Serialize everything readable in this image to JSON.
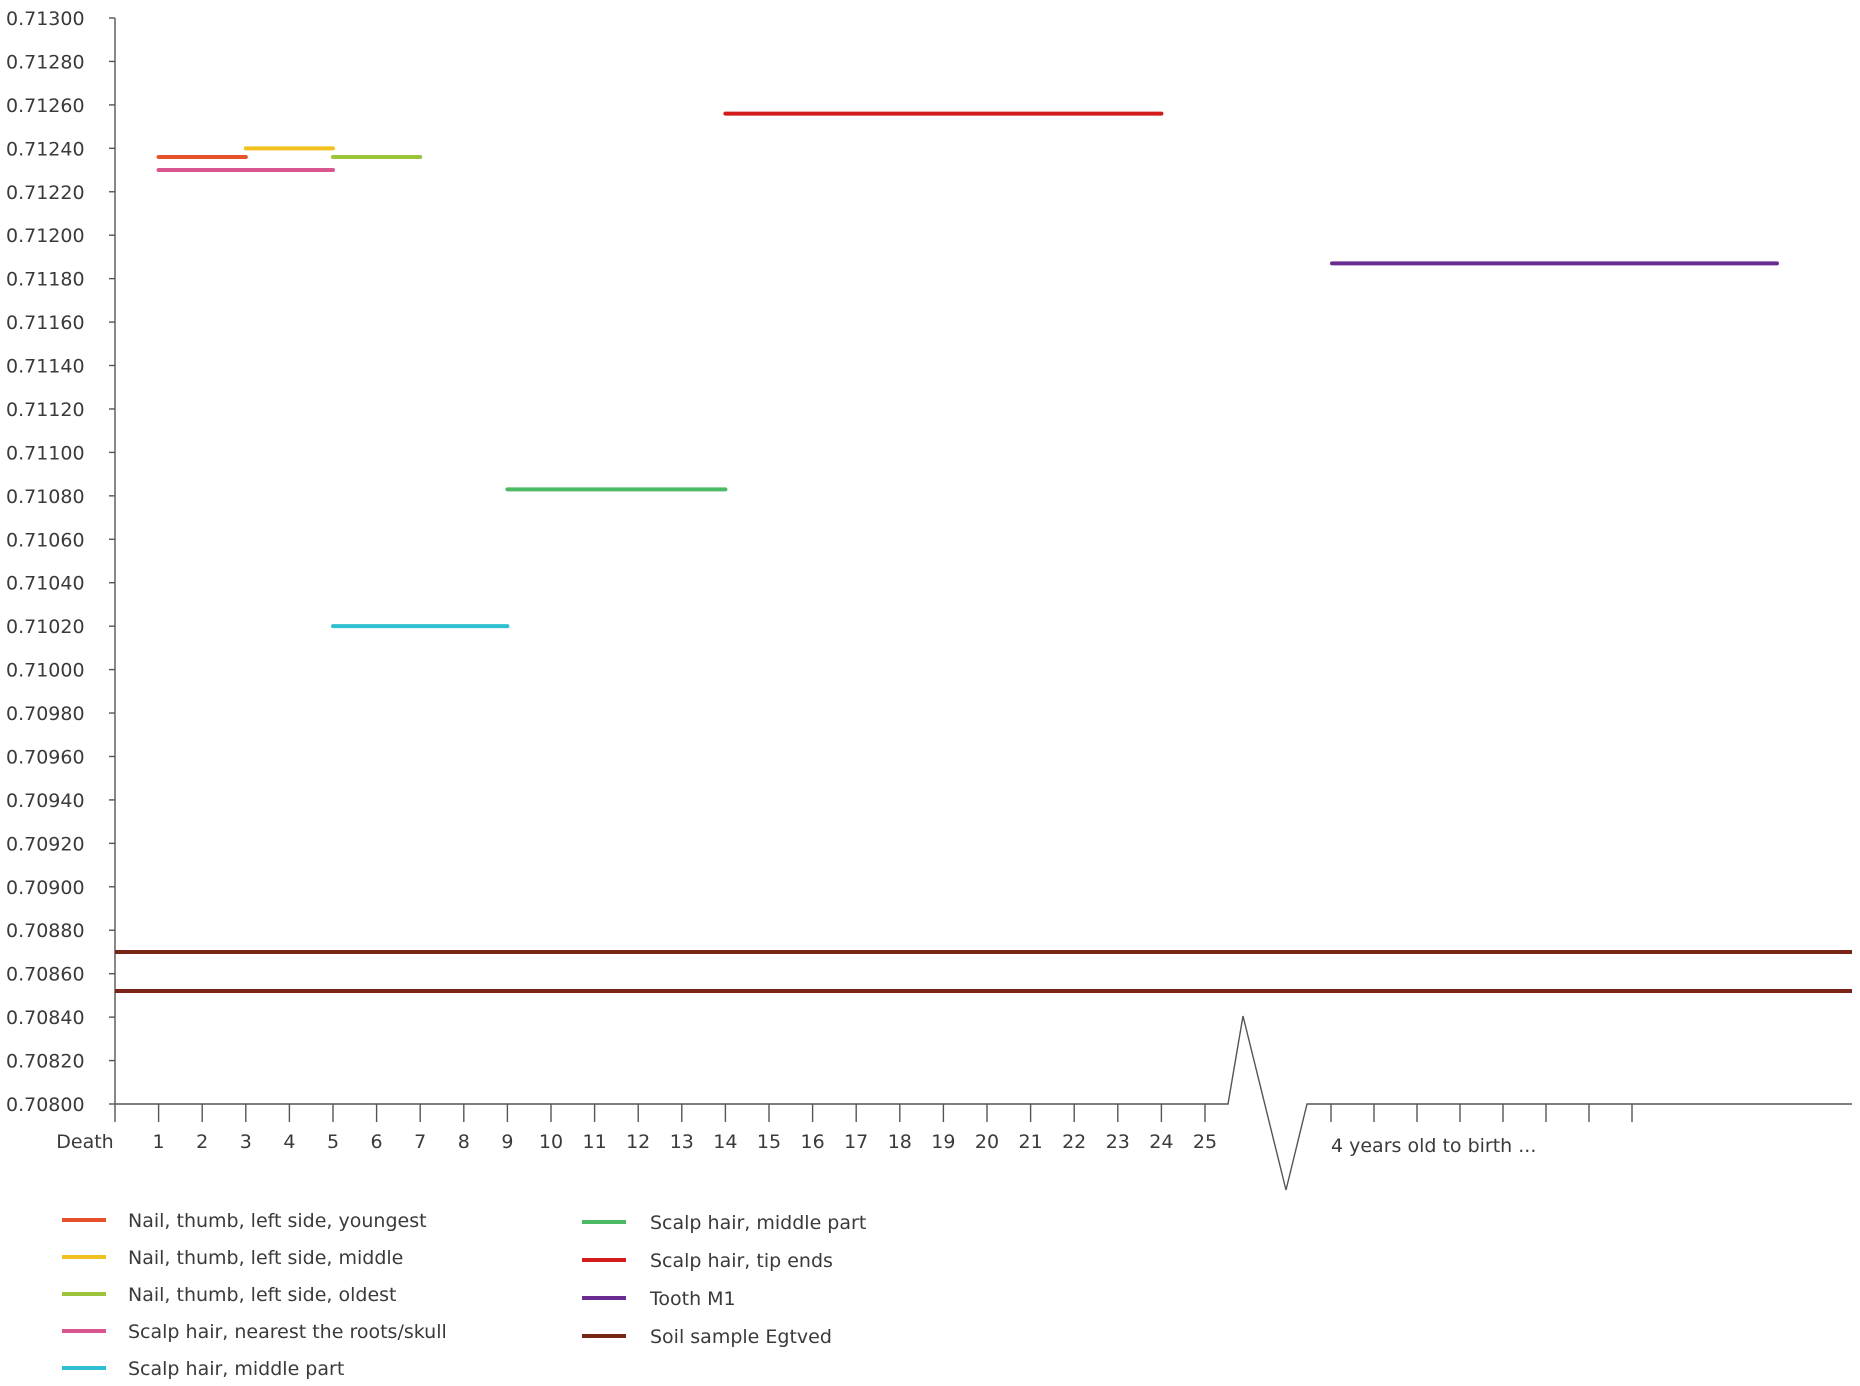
{
  "chart_data": {
    "type": "line",
    "title": "",
    "xlabel": "",
    "ylabel": "",
    "ylim": [
      0.708,
      0.713
    ],
    "yticks": [
      "0.71300",
      "0.71280",
      "0.71260",
      "0.71240",
      "0.71220",
      "0.71200",
      "0.71180",
      "0.71160",
      "0.71140",
      "0.71120",
      "0.71100",
      "0.71080",
      "0.71060",
      "0.71040",
      "0.71020",
      "0.71000",
      "0.70980",
      "0.70960",
      "0.70940",
      "0.70920",
      "0.70900",
      "0.70880",
      "0.70860",
      "0.70840",
      "0.70820",
      "0.70800"
    ],
    "xticks": [
      "Death",
      "1",
      "2",
      "3",
      "4",
      "5",
      "6",
      "7",
      "8",
      "9",
      "10",
      "11",
      "12",
      "13",
      "14",
      "15",
      "16",
      "17",
      "18",
      "19",
      "20",
      "21",
      "22",
      "23",
      "24",
      "25"
    ],
    "x_break_label": "4 years old to birth ...",
    "grid": false,
    "legend_position": "bottom",
    "series": [
      {
        "name": "Nail, thumb, left side, youngest",
        "color": "#e8522b",
        "x": [
          1,
          3
        ],
        "y": [
          0.71236,
          0.71236
        ]
      },
      {
        "name": "Nail, thumb, left side, middle",
        "color": "#f2c01e",
        "x": [
          3,
          5
        ],
        "y": [
          0.7124,
          0.7124
        ]
      },
      {
        "name": "Nail, thumb, left side, oldest",
        "color": "#9cc43a",
        "x": [
          5,
          7
        ],
        "y": [
          0.71236,
          0.71236
        ]
      },
      {
        "name": "Scalp hair, nearest the roots/skull",
        "color": "#d9558f",
        "x": [
          1,
          5
        ],
        "y": [
          0.7123,
          0.7123
        ]
      },
      {
        "name": "Scalp hair, middle part",
        "color": "#2ebfd0",
        "x": [
          5,
          9
        ],
        "y": [
          0.7102,
          0.7102
        ]
      },
      {
        "name": "Scalp hair, middle part",
        "color": "#4cb964",
        "x": [
          9,
          14
        ],
        "y": [
          0.71083,
          0.71083
        ]
      },
      {
        "name": "Scalp hair, tip ends",
        "color": "#d41c1c",
        "x": [
          14,
          24
        ],
        "y": [
          0.71256,
          0.71256
        ]
      },
      {
        "name": "Tooth M1",
        "color": "#6a2c91",
        "x": [
          "4 years old",
          "birth"
        ],
        "y": [
          0.71187,
          0.71187
        ]
      },
      {
        "name": "Soil sample Egtved",
        "color": "#7a2418",
        "y_band": [
          0.70852,
          0.7087
        ]
      }
    ]
  }
}
